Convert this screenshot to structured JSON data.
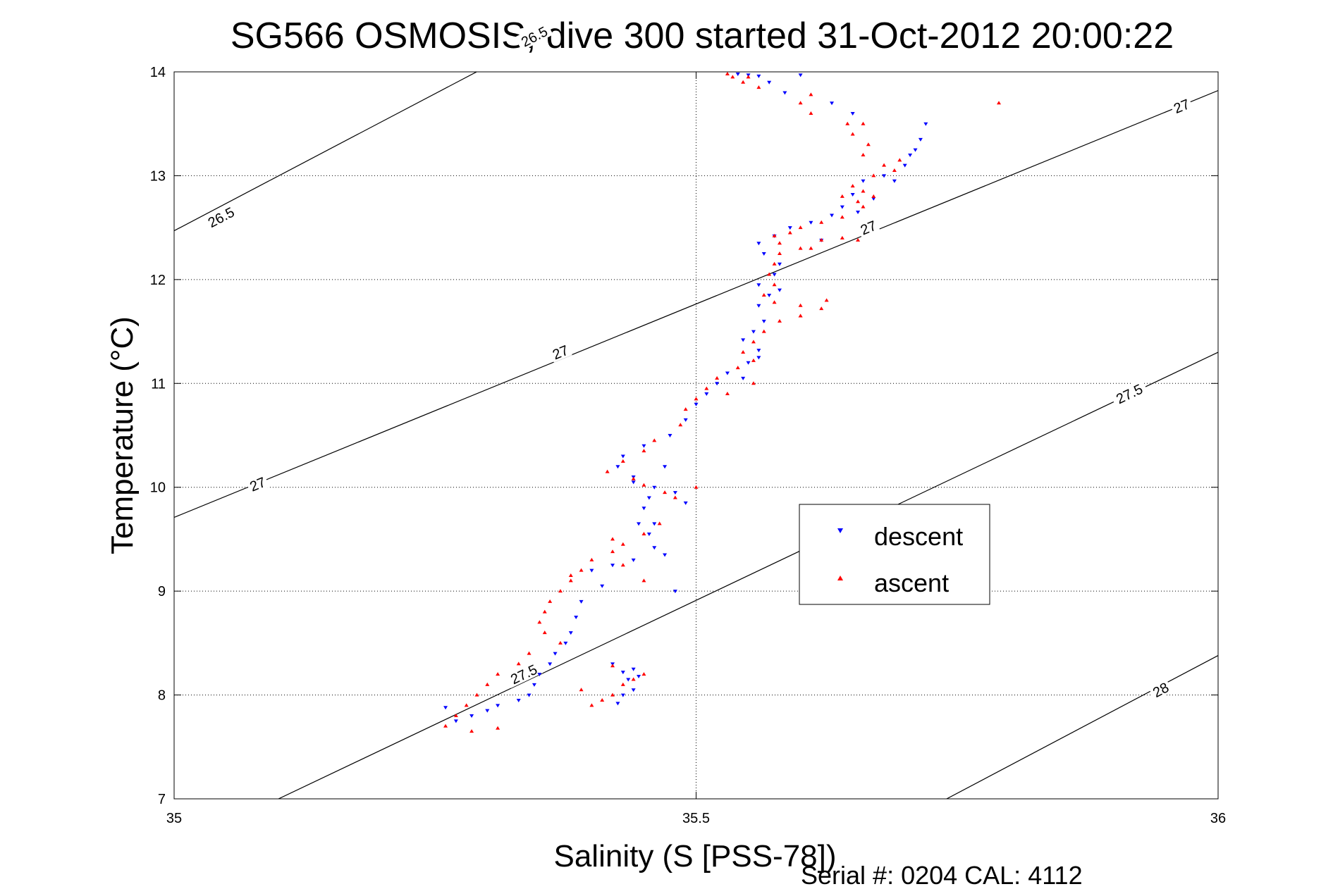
{
  "chart_data": {
    "type": "scatter",
    "title": "SG566 OSMOSIS, dive 300 started 31-Oct-2012 20:00:22",
    "xlabel": "Salinity (S [PSS-78])",
    "ylabel": "Temperature (°C)",
    "xlim": [
      35,
      36
    ],
    "ylim": [
      7,
      14
    ],
    "xticks": [
      35,
      35.5,
      36
    ],
    "xtick_labels": [
      "35",
      "35.5",
      "36"
    ],
    "yticks": [
      7,
      8,
      9,
      10,
      11,
      12,
      13,
      14
    ],
    "ytick_labels": [
      "7",
      "8",
      "9",
      "10",
      "11",
      "12",
      "13",
      "14"
    ],
    "grid": true,
    "legend": {
      "placement": "center-right",
      "entries": [
        {
          "label": "descent",
          "color": "#0000ff",
          "marker": "triangle-down"
        },
        {
          "label": "ascent",
          "color": "#ff0000",
          "marker": "triangle-up"
        }
      ]
    },
    "footer": "Serial #: 0204  CAL: 4112",
    "contours": [
      {
        "level": "26.5",
        "color": "#000000",
        "points": [
          [
            35.0,
            12.47
          ],
          [
            36.0,
            17.75
          ]
        ],
        "labels": [
          {
            "text": "26.5",
            "x": 35.045,
            "y": 12.6
          },
          {
            "text": "26.5",
            "x": 35.345,
            "y": 14.34
          }
        ]
      },
      {
        "level": "27",
        "color": "#000000",
        "points": [
          [
            35.0,
            9.71
          ],
          [
            36.0,
            13.82
          ]
        ],
        "labels": [
          {
            "text": "27",
            "x": 35.08,
            "y": 10.03
          },
          {
            "text": "27",
            "x": 35.37,
            "y": 11.3
          },
          {
            "text": "27",
            "x": 35.665,
            "y": 12.5
          },
          {
            "text": "27",
            "x": 35.965,
            "y": 13.67
          }
        ]
      },
      {
        "level": "27.5",
        "color": "#000000",
        "points": [
          [
            35.1,
            7.0
          ],
          [
            36.0,
            11.3
          ]
        ],
        "labels": [
          {
            "text": "27.5",
            "x": 35.335,
            "y": 8.2
          },
          {
            "text": "27.5",
            "x": 35.915,
            "y": 10.9
          }
        ]
      },
      {
        "level": "28",
        "color": "#000000",
        "points": [
          [
            35.74,
            7.0
          ],
          [
            36.0,
            8.38
          ]
        ],
        "labels": [
          {
            "text": "28",
            "x": 35.945,
            "y": 8.05
          }
        ]
      }
    ],
    "series": [
      {
        "name": "descent",
        "color": "#0000ff",
        "marker": "triangle-down",
        "points": [
          [
            35.54,
            13.98
          ],
          [
            35.55,
            13.97
          ],
          [
            35.56,
            13.96
          ],
          [
            35.57,
            13.9
          ],
          [
            35.585,
            13.8
          ],
          [
            35.63,
            13.7
          ],
          [
            35.65,
            13.6
          ],
          [
            35.72,
            13.5
          ],
          [
            35.715,
            13.35
          ],
          [
            35.71,
            13.25
          ],
          [
            35.7,
            13.1
          ],
          [
            35.68,
            13.0
          ],
          [
            35.66,
            12.95
          ],
          [
            35.65,
            12.82
          ],
          [
            35.64,
            12.7
          ],
          [
            35.63,
            12.62
          ],
          [
            35.61,
            12.55
          ],
          [
            35.59,
            12.5
          ],
          [
            35.575,
            12.42
          ],
          [
            35.56,
            12.35
          ],
          [
            35.565,
            12.25
          ],
          [
            35.58,
            12.15
          ],
          [
            35.575,
            12.05
          ],
          [
            35.56,
            11.95
          ],
          [
            35.57,
            11.85
          ],
          [
            35.56,
            11.75
          ],
          [
            35.565,
            11.6
          ],
          [
            35.555,
            11.5
          ],
          [
            35.545,
            11.42
          ],
          [
            35.56,
            11.32
          ],
          [
            35.55,
            11.2
          ],
          [
            35.53,
            11.1
          ],
          [
            35.52,
            11.0
          ],
          [
            35.51,
            10.9
          ],
          [
            35.5,
            10.8
          ],
          [
            35.49,
            10.65
          ],
          [
            35.475,
            10.5
          ],
          [
            35.45,
            10.4
          ],
          [
            35.43,
            10.3
          ],
          [
            35.425,
            10.2
          ],
          [
            35.44,
            10.1
          ],
          [
            35.46,
            10.0
          ],
          [
            35.48,
            9.95
          ],
          [
            35.455,
            9.9
          ],
          [
            35.45,
            9.8
          ],
          [
            35.445,
            9.65
          ],
          [
            35.455,
            9.55
          ],
          [
            35.46,
            9.42
          ],
          [
            35.44,
            9.3
          ],
          [
            35.42,
            9.25
          ],
          [
            35.4,
            9.2
          ],
          [
            35.41,
            9.05
          ],
          [
            35.39,
            8.9
          ],
          [
            35.385,
            8.75
          ],
          [
            35.38,
            8.6
          ],
          [
            35.375,
            8.5
          ],
          [
            35.365,
            8.4
          ],
          [
            35.36,
            8.3
          ],
          [
            35.35,
            8.2
          ],
          [
            35.345,
            8.1
          ],
          [
            35.34,
            8.0
          ],
          [
            35.33,
            7.95
          ],
          [
            35.31,
            7.9
          ],
          [
            35.3,
            7.85
          ],
          [
            35.285,
            7.8
          ],
          [
            35.27,
            7.75
          ],
          [
            35.26,
            7.88
          ],
          [
            35.43,
            8.0
          ],
          [
            35.44,
            8.05
          ],
          [
            35.445,
            8.18
          ],
          [
            35.44,
            8.25
          ],
          [
            35.42,
            8.3
          ],
          [
            35.425,
            7.92
          ],
          [
            35.43,
            8.22
          ],
          [
            35.435,
            8.15
          ],
          [
            35.47,
            9.35
          ],
          [
            35.48,
            9.0
          ],
          [
            35.46,
            9.65
          ],
          [
            35.49,
            9.85
          ],
          [
            35.44,
            10.05
          ],
          [
            35.47,
            10.2
          ],
          [
            35.545,
            11.05
          ],
          [
            35.56,
            11.25
          ],
          [
            35.58,
            11.9
          ],
          [
            35.62,
            12.38
          ],
          [
            35.655,
            12.65
          ],
          [
            35.67,
            12.78
          ],
          [
            35.69,
            12.95
          ],
          [
            35.705,
            13.2
          ],
          [
            35.6,
            13.97
          ]
        ]
      },
      {
        "name": "ascent",
        "color": "#ff0000",
        "marker": "triangle-up",
        "points": [
          [
            35.53,
            13.98
          ],
          [
            35.535,
            13.95
          ],
          [
            35.545,
            13.9
          ],
          [
            35.6,
            13.7
          ],
          [
            35.61,
            13.6
          ],
          [
            35.645,
            13.5
          ],
          [
            35.65,
            13.4
          ],
          [
            35.665,
            13.3
          ],
          [
            35.66,
            13.2
          ],
          [
            35.68,
            13.1
          ],
          [
            35.67,
            13.0
          ],
          [
            35.65,
            12.9
          ],
          [
            35.64,
            12.8
          ],
          [
            35.655,
            12.75
          ],
          [
            35.66,
            12.7
          ],
          [
            35.64,
            12.6
          ],
          [
            35.62,
            12.55
          ],
          [
            35.6,
            12.5
          ],
          [
            35.59,
            12.45
          ],
          [
            35.575,
            12.42
          ],
          [
            35.58,
            12.35
          ],
          [
            35.62,
            12.38
          ],
          [
            35.64,
            12.4
          ],
          [
            35.655,
            12.38
          ],
          [
            35.6,
            12.3
          ],
          [
            35.58,
            12.25
          ],
          [
            35.575,
            12.15
          ],
          [
            35.57,
            12.05
          ],
          [
            35.575,
            11.95
          ],
          [
            35.565,
            11.85
          ],
          [
            35.575,
            11.78
          ],
          [
            35.6,
            11.75
          ],
          [
            35.62,
            11.72
          ],
          [
            35.625,
            11.8
          ],
          [
            35.6,
            11.65
          ],
          [
            35.58,
            11.6
          ],
          [
            35.565,
            11.5
          ],
          [
            35.555,
            11.4
          ],
          [
            35.545,
            11.3
          ],
          [
            35.555,
            11.22
          ],
          [
            35.54,
            11.15
          ],
          [
            35.52,
            11.05
          ],
          [
            35.51,
            10.95
          ],
          [
            35.5,
            10.85
          ],
          [
            35.49,
            10.75
          ],
          [
            35.485,
            10.6
          ],
          [
            35.46,
            10.45
          ],
          [
            35.45,
            10.35
          ],
          [
            35.43,
            10.25
          ],
          [
            35.415,
            10.15
          ],
          [
            35.44,
            10.08
          ],
          [
            35.45,
            10.02
          ],
          [
            35.47,
            9.95
          ],
          [
            35.48,
            9.9
          ],
          [
            35.465,
            9.65
          ],
          [
            35.45,
            9.55
          ],
          [
            35.43,
            9.45
          ],
          [
            35.42,
            9.38
          ],
          [
            35.4,
            9.3
          ],
          [
            35.39,
            9.2
          ],
          [
            35.38,
            9.1
          ],
          [
            35.37,
            9.0
          ],
          [
            35.36,
            8.9
          ],
          [
            35.355,
            8.8
          ],
          [
            35.35,
            8.7
          ],
          [
            35.355,
            8.6
          ],
          [
            35.37,
            8.5
          ],
          [
            35.34,
            8.4
          ],
          [
            35.33,
            8.3
          ],
          [
            35.31,
            8.2
          ],
          [
            35.3,
            8.1
          ],
          [
            35.29,
            8.0
          ],
          [
            35.28,
            7.9
          ],
          [
            35.27,
            7.8
          ],
          [
            35.26,
            7.7
          ],
          [
            35.285,
            7.65
          ],
          [
            35.31,
            7.68
          ],
          [
            35.4,
            7.9
          ],
          [
            35.41,
            7.95
          ],
          [
            35.42,
            8.0
          ],
          [
            35.43,
            8.1
          ],
          [
            35.44,
            8.15
          ],
          [
            35.45,
            8.2
          ],
          [
            35.42,
            8.28
          ],
          [
            35.39,
            8.05
          ],
          [
            35.45,
            9.1
          ],
          [
            35.43,
            9.25
          ],
          [
            35.38,
            9.15
          ],
          [
            35.42,
            9.5
          ],
          [
            35.5,
            10.0
          ],
          [
            35.53,
            10.9
          ],
          [
            35.555,
            11.0
          ],
          [
            35.6,
            11.65
          ],
          [
            35.61,
            12.3
          ],
          [
            35.67,
            12.8
          ],
          [
            35.66,
            12.85
          ],
          [
            35.69,
            13.05
          ],
          [
            35.695,
            13.15
          ],
          [
            35.66,
            13.5
          ],
          [
            35.61,
            13.78
          ],
          [
            35.56,
            13.85
          ],
          [
            35.55,
            13.95
          ],
          [
            35.79,
            13.7
          ]
        ]
      }
    ]
  }
}
